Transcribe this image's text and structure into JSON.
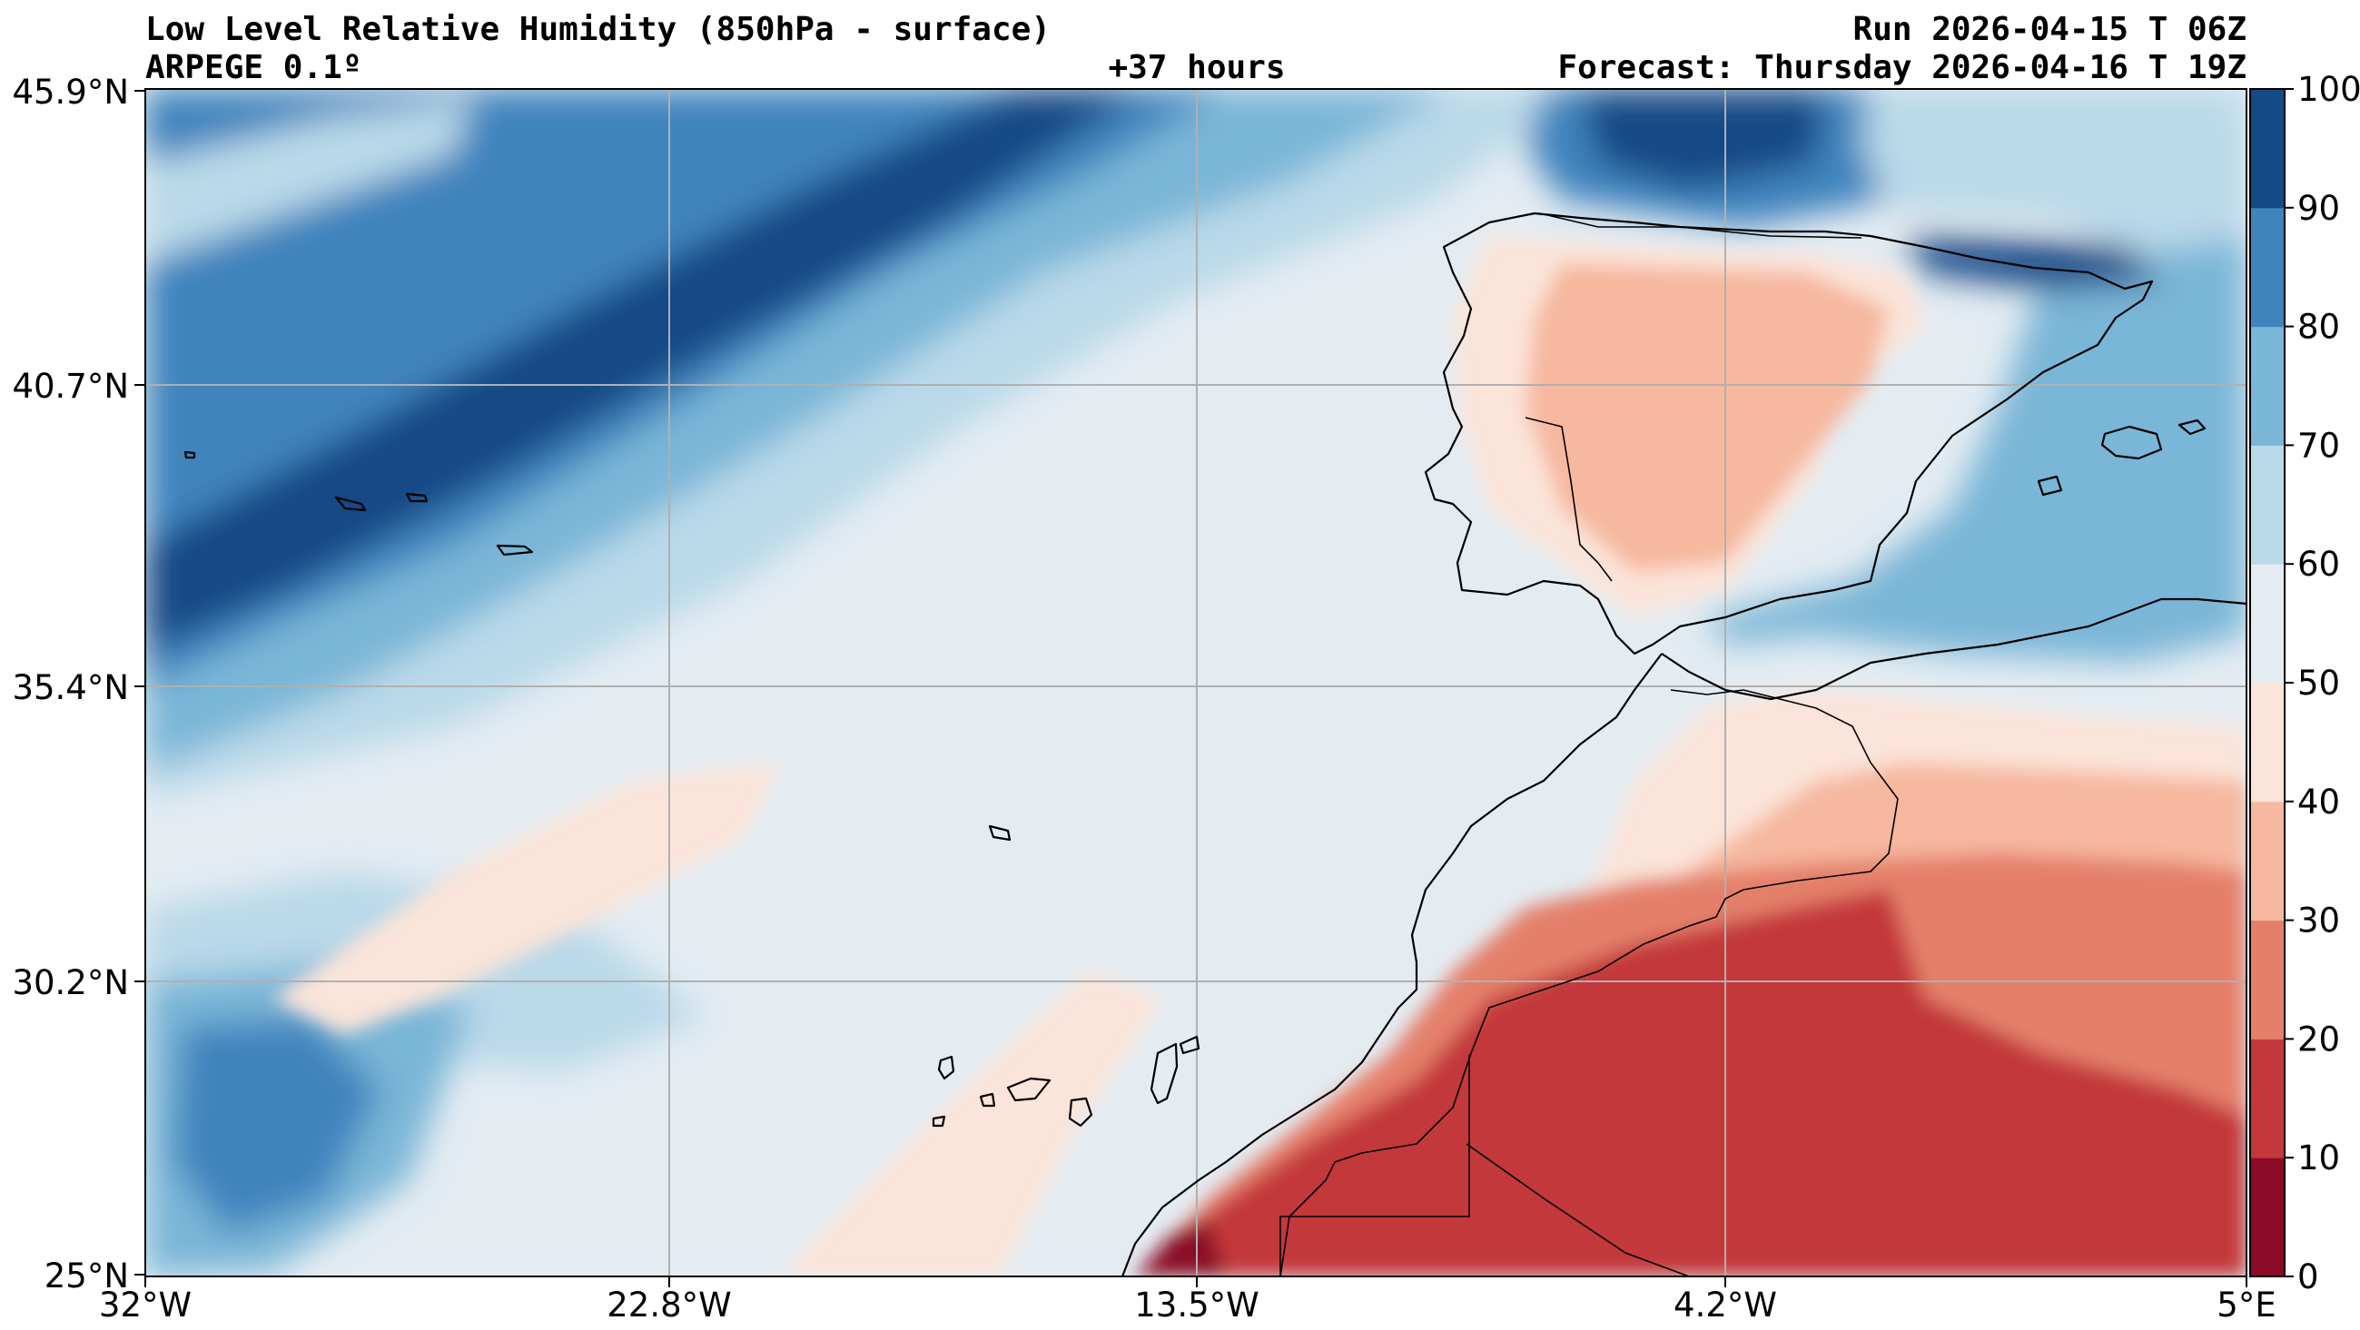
{
  "header": {
    "title": "Low Level Relative Humidity (850hPa - surface)",
    "model": "ARPEGE 0.1º",
    "lead": "+37 hours",
    "run": "Run 2026-04-15 T 06Z",
    "forecast": "Forecast: Thursday 2026-04-16 T 19Z"
  },
  "map": {
    "lon_range": [
      -32,
      5
    ],
    "lat_range": [
      25,
      45.9
    ],
    "lon_ticks": [
      "32°W",
      "22.8°W",
      "13.5°W",
      "4.2°W",
      "5°E"
    ],
    "lat_ticks": [
      "45.9°N",
      "40.7°N",
      "35.4°N",
      "30.2°N",
      "25°N"
    ],
    "gridlines": true,
    "regions": [
      "North Atlantic Ocean",
      "Iberian Peninsula",
      "Morocco",
      "Western Sahara",
      "Canary Islands",
      "Madeira",
      "Azores",
      "Balearic Islands"
    ]
  },
  "colorbar": {
    "ticks": [
      "100",
      "90",
      "80",
      "70",
      "60",
      "50",
      "40",
      "30",
      "20",
      "10",
      "0"
    ],
    "levels": [
      0,
      10,
      20,
      30,
      40,
      50,
      60,
      70,
      80,
      90,
      100
    ],
    "colors": [
      "#8b0a26",
      "#c3383b",
      "#e4806a",
      "#f6b89f",
      "#fbe4d9",
      "#e4ecf2",
      "#bad9e9",
      "#7ab6d7",
      "#3f84bd",
      "#144a86"
    ],
    "placement": "right",
    "units": "%"
  }
}
